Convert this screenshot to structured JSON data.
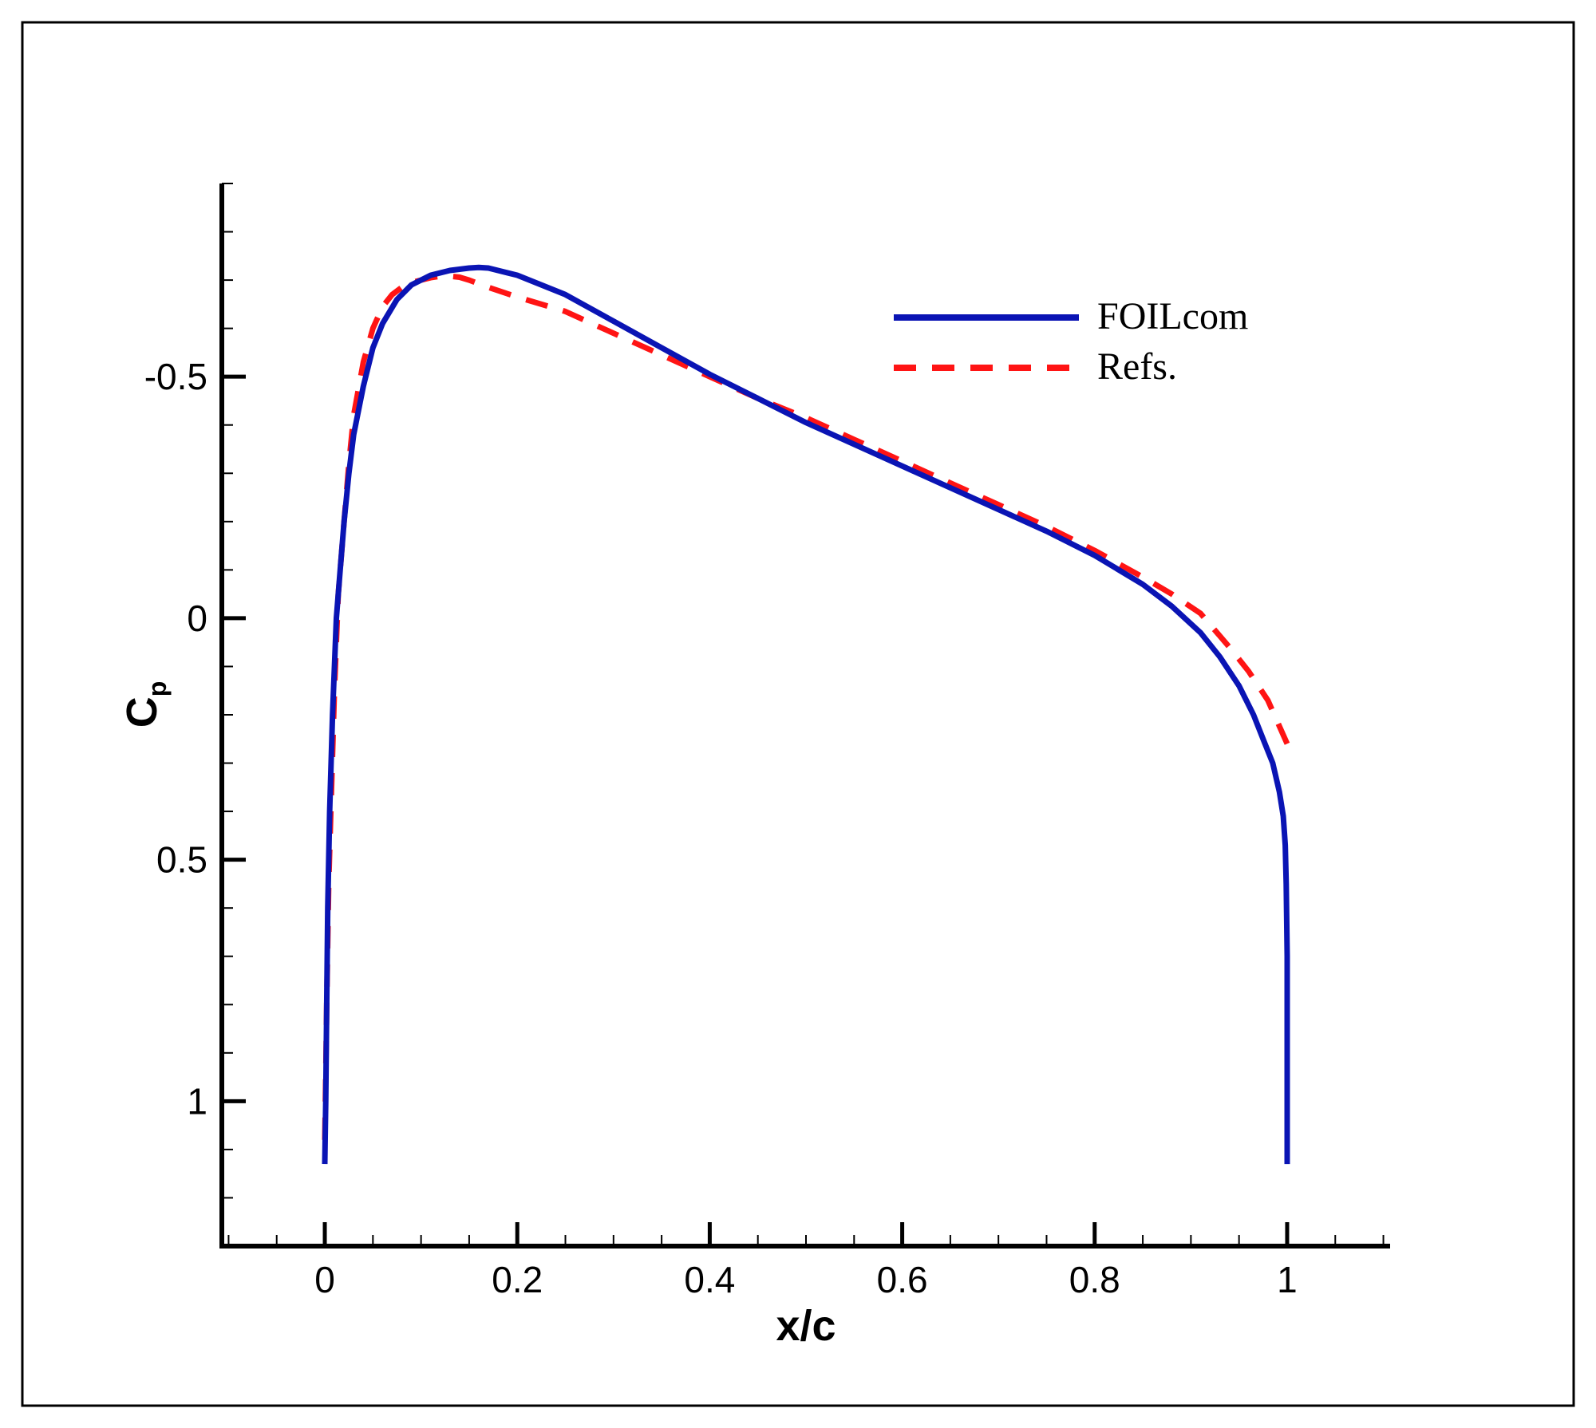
{
  "chart_data": {
    "type": "line",
    "xlabel": "x/c",
    "ylabel_main": "C",
    "ylabel_sub": "p",
    "xlim": [
      -0.107,
      1.107
    ],
    "ylim": [
      1.3,
      -0.9
    ],
    "y_inverted": true,
    "x_ticks": [
      {
        "value": 0,
        "label": "0"
      },
      {
        "value": 0.2,
        "label": "0.2"
      },
      {
        "value": 0.4,
        "label": "0.4"
      },
      {
        "value": 0.6,
        "label": "0.6"
      },
      {
        "value": 0.8,
        "label": "0.8"
      },
      {
        "value": 1,
        "label": "1"
      }
    ],
    "x_minor_step": 0.05,
    "y_ticks": [
      {
        "value": -0.5,
        "label": "-0.5"
      },
      {
        "value": 0,
        "label": "0"
      },
      {
        "value": 0.5,
        "label": "0.5"
      },
      {
        "value": 1,
        "label": "1"
      }
    ],
    "y_minor_step": 0.1,
    "grid": false,
    "legend_position": "top-right",
    "series": [
      {
        "name": "FOILcom",
        "color": "#0a14b4",
        "style": "solid",
        "x": [
          0.0,
          0.001,
          0.002,
          0.003,
          0.005,
          0.008,
          0.012,
          0.016,
          0.02,
          0.025,
          0.03,
          0.04,
          0.05,
          0.06,
          0.075,
          0.09,
          0.11,
          0.13,
          0.15,
          0.16,
          0.17,
          0.2,
          0.25,
          0.3,
          0.35,
          0.4,
          0.45,
          0.5,
          0.55,
          0.6,
          0.65,
          0.7,
          0.75,
          0.8,
          0.85,
          0.88,
          0.91,
          0.93,
          0.95,
          0.965,
          0.975,
          0.985,
          0.992,
          0.996,
          0.998,
          0.999,
          1.0,
          1.0,
          1.0
        ],
        "y": [
          1.13,
          1.0,
          0.8,
          0.6,
          0.4,
          0.2,
          0.0,
          -0.1,
          -0.2,
          -0.3,
          -0.38,
          -0.48,
          -0.56,
          -0.61,
          -0.66,
          -0.69,
          -0.71,
          -0.72,
          -0.725,
          -0.726,
          -0.725,
          -0.71,
          -0.67,
          -0.615,
          -0.56,
          -0.505,
          -0.455,
          -0.405,
          -0.36,
          -0.315,
          -0.27,
          -0.225,
          -0.18,
          -0.13,
          -0.07,
          -0.025,
          0.03,
          0.08,
          0.14,
          0.2,
          0.25,
          0.3,
          0.36,
          0.41,
          0.47,
          0.55,
          0.7,
          0.9,
          1.13
        ]
      },
      {
        "name": "Refs.",
        "color": "#ff1414",
        "style": "dashed",
        "x": [
          0.0,
          0.001,
          0.002,
          0.004,
          0.007,
          0.01,
          0.014,
          0.02,
          0.025,
          0.03,
          0.04,
          0.05,
          0.06,
          0.07,
          0.08,
          0.09,
          0.1,
          0.11,
          0.12,
          0.13,
          0.14,
          0.15,
          0.17,
          0.2,
          0.25,
          0.3,
          0.35,
          0.4,
          0.45,
          0.5,
          0.55,
          0.6,
          0.65,
          0.7,
          0.75,
          0.8,
          0.85,
          0.88,
          0.91,
          0.94,
          0.96,
          0.98,
          1.0
        ],
        "y": [
          1.08,
          0.95,
          0.8,
          0.55,
          0.35,
          0.15,
          -0.05,
          -0.2,
          -0.32,
          -0.42,
          -0.53,
          -0.6,
          -0.645,
          -0.67,
          -0.685,
          -0.695,
          -0.7,
          -0.705,
          -0.708,
          -0.708,
          -0.706,
          -0.7,
          -0.685,
          -0.665,
          -0.635,
          -0.59,
          -0.545,
          -0.5,
          -0.455,
          -0.415,
          -0.37,
          -0.325,
          -0.28,
          -0.235,
          -0.19,
          -0.14,
          -0.085,
          -0.05,
          -0.01,
          0.06,
          0.11,
          0.17,
          0.26
        ]
      }
    ]
  }
}
